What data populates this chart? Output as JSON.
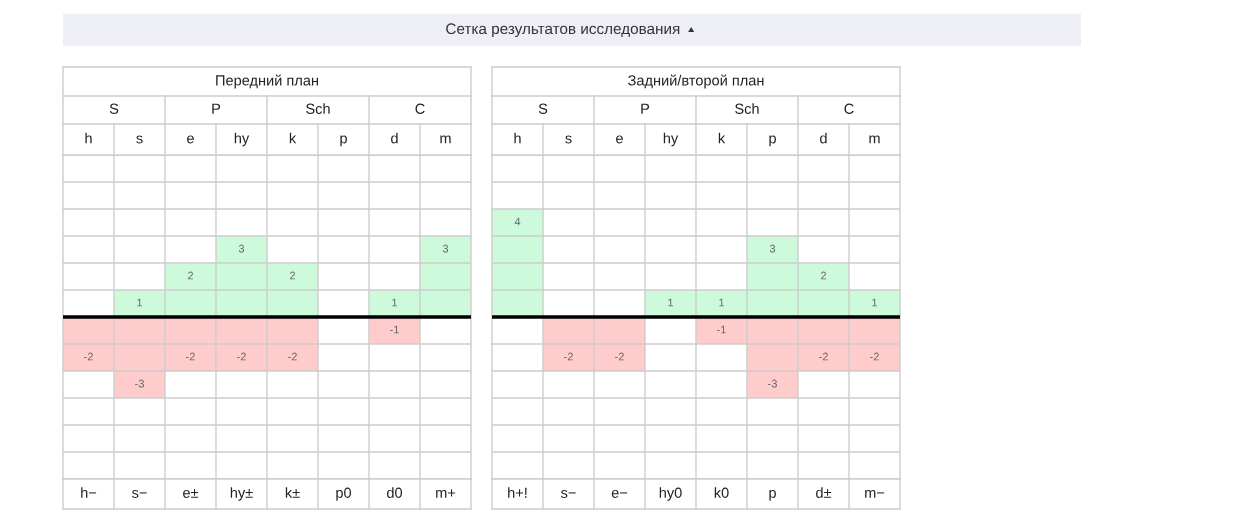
{
  "chart_data": [
    {
      "type": "other",
      "title": "Сетка результатов исследования"
    },
    {
      "type": "bar",
      "subtitle": "Передний план",
      "categories": [
        "h",
        "s",
        "e",
        "hy",
        "k",
        "p",
        "d",
        "m"
      ],
      "series": [
        {
          "color": "#ccfadb",
          "values": [
            0,
            1,
            2,
            3,
            2,
            0,
            1,
            3
          ],
          "value_labels": [
            null,
            "1",
            "2",
            "3",
            "2",
            null,
            "1",
            "3"
          ]
        },
        {
          "color": "#ffcccc",
          "values": [
            -2,
            -3,
            -2,
            -2,
            -2,
            0,
            -1,
            0
          ],
          "value_labels": [
            "-2",
            "-3",
            "-2",
            "-2",
            "-2",
            null,
            "-1",
            null
          ]
        }
      ],
      "stacked": true,
      "ylim": [
        -6,
        6
      ],
      "yticks": [
        {
          "value": -6,
          "label": null
        },
        {
          "value": -5,
          "label": null
        },
        {
          "value": -4,
          "label": null
        },
        {
          "value": -3,
          "label": null
        },
        {
          "value": -2,
          "label": null
        },
        {
          "value": -1,
          "label": null
        },
        {
          "value": 0,
          "label": null
        },
        {
          "value": 1,
          "label": null
        },
        {
          "value": 2,
          "label": null
        },
        {
          "value": 3,
          "label": null
        },
        {
          "value": 4,
          "label": null
        },
        {
          "value": 5,
          "label": null
        },
        {
          "value": 6,
          "label": null
        }
      ],
      "grid": true,
      "tick_labels": "x",
      "ref_lines": [
        {
          "axis": "y",
          "value": 0,
          "color": "#000000"
        }
      ],
      "annotations": [
        "S",
        "P",
        "Sch",
        "C",
        "h−",
        "s−",
        "e±",
        "hy±",
        "k±",
        "p0",
        "d0",
        "m+"
      ]
    },
    {
      "type": "bar",
      "subtitle": "Задний/второй план",
      "categories": [
        "h",
        "s",
        "e",
        "hy",
        "k",
        "p",
        "d",
        "m"
      ],
      "series": [
        {
          "color": "#ccfadb",
          "values": [
            4,
            0,
            0,
            1,
            1,
            3,
            2,
            1
          ],
          "value_labels": [
            "4",
            null,
            null,
            "1",
            "1",
            "3",
            "2",
            "1"
          ]
        },
        {
          "color": "#ffcccc",
          "values": [
            0,
            -2,
            -2,
            0,
            -1,
            -3,
            -2,
            -2
          ],
          "value_labels": [
            null,
            "-2",
            "-2",
            null,
            "-1",
            "-3",
            "-2",
            "-2"
          ]
        }
      ],
      "stacked": true,
      "ylim": [
        -6,
        6
      ],
      "yticks": [
        {
          "value": -6,
          "label": null
        },
        {
          "value": -5,
          "label": null
        },
        {
          "value": -4,
          "label": null
        },
        {
          "value": -3,
          "label": null
        },
        {
          "value": -2,
          "label": null
        },
        {
          "value": -1,
          "label": null
        },
        {
          "value": 0,
          "label": null
        },
        {
          "value": 1,
          "label": null
        },
        {
          "value": 2,
          "label": null
        },
        {
          "value": 3,
          "label": null
        },
        {
          "value": 4,
          "label": null
        },
        {
          "value": 5,
          "label": null
        },
        {
          "value": 6,
          "label": null
        }
      ],
      "grid": true,
      "tick_labels": "x",
      "ref_lines": [
        {
          "axis": "y",
          "value": 0,
          "color": "#000000"
        }
      ],
      "annotations": [
        "S",
        "P",
        "Sch",
        "C",
        "h+!",
        "s−",
        "e−",
        "hy0",
        "k0",
        "p",
        "d±",
        "m−"
      ]
    }
  ]
}
